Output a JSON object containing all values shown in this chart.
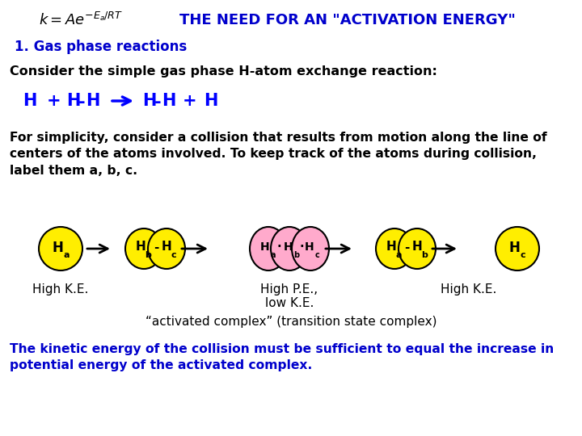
{
  "bg_color": "#ffffff",
  "title_text": "THE NEED FOR AN \"ACTIVATION ENERGY\"",
  "title_color": "#0000cc",
  "formula_text": "$k = Ae^{-E_a/RT}$",
  "section1_text": "1. Gas phase reactions",
  "section1_color": "#0000cc",
  "consider_text": "Consider the simple gas phase H-atom exchange reaction:",
  "reaction_color": "#0000ff",
  "para1_line1": "For simplicity, consider a collision that results from motion along the line of",
  "para1_line2": "centers of the atoms involved. To keep track of the atoms during collision,",
  "para1_line3": "label them a, b, c.",
  "yellow_color": "#ffee00",
  "pink_color": "#ffaacc",
  "atom_border": "#000000",
  "label1": "High K.E.",
  "label2a": "High P.E.,",
  "label2b": "low K.E.",
  "label3": "High K.E.",
  "activated_text": "“activated complex” (transition state complex)",
  "final_line1": "The kinetic energy of the collision must be sufficient to equal the increase in",
  "final_line2": "potential energy of the activated complex.",
  "final_color": "#0000cc"
}
